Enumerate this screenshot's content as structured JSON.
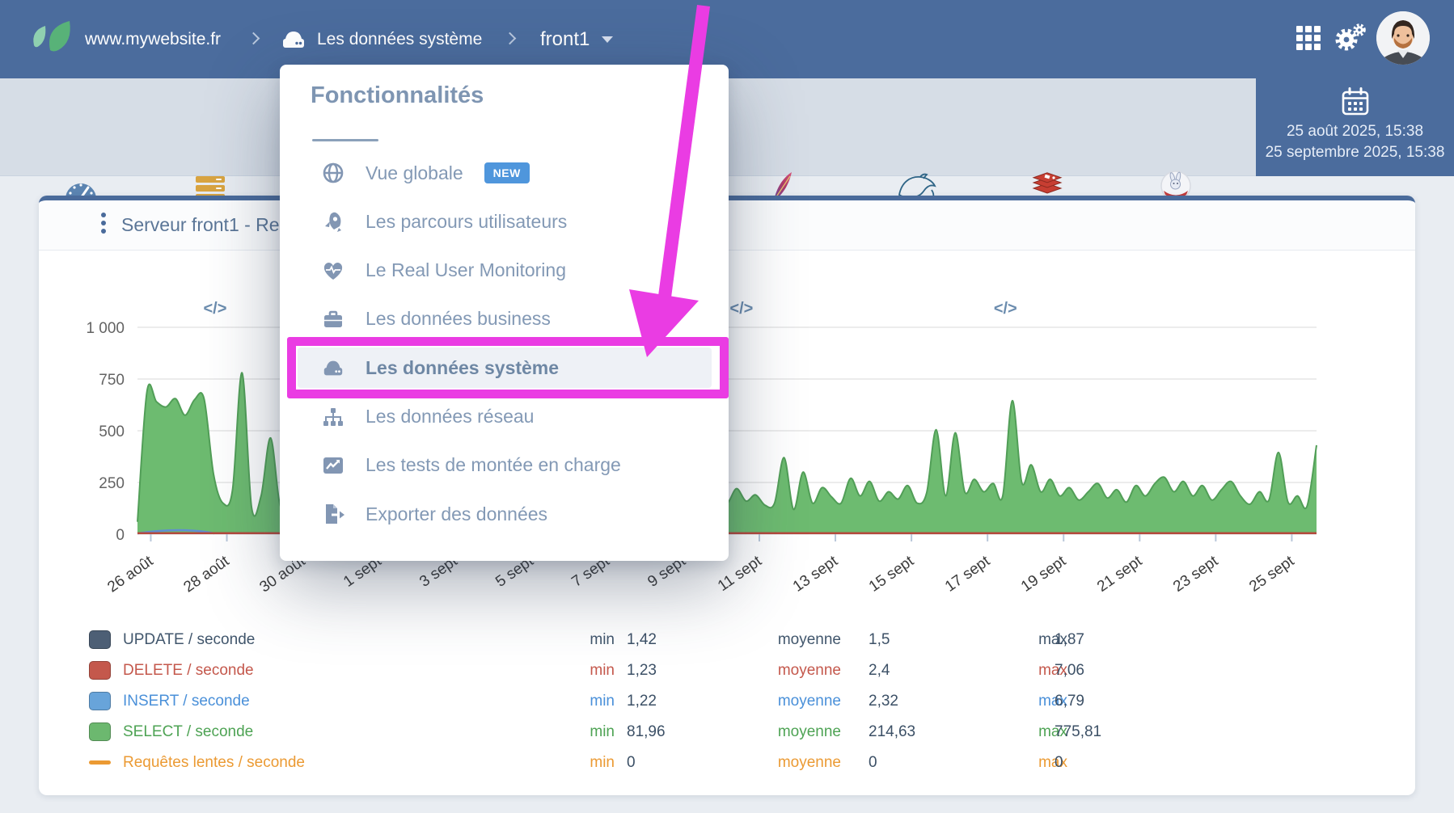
{
  "navbar": {
    "site": "www.mywebsite.fr",
    "section": "Les données système",
    "server": "front1",
    "right_icons": [
      "apps-grid-icon",
      "gears-icon",
      "user-avatar"
    ]
  },
  "toolbar": {
    "items": [
      {
        "label": "CPU",
        "icon": "gauge-icon",
        "active": false
      },
      {
        "label": "Mémoire",
        "icon": "memory-icon",
        "active": false
      },
      {
        "label": "Apache",
        "icon": "apache-icon",
        "active": false
      },
      {
        "label": "MySQL",
        "icon": "mysql-icon",
        "active": true
      },
      {
        "label": "Redis",
        "icon": "redis-icon",
        "active": false
      },
      {
        "label": "Varnish",
        "icon": "varnish-icon",
        "active": false
      }
    ],
    "daterange": {
      "from": "25 août 2025, 15:38",
      "to": "25 septembre 2025, 15:38"
    }
  },
  "menu": {
    "title": "Fonctionnalités",
    "items": [
      {
        "icon": "globe-icon",
        "label": "Vue globale",
        "badge": "NEW",
        "selected": false
      },
      {
        "icon": "rocket-icon",
        "label": "Les parcours utilisateurs",
        "selected": false
      },
      {
        "icon": "heart-pulse-icon",
        "label": "Le Real User Monitoring",
        "selected": false
      },
      {
        "icon": "briefcase-icon",
        "label": "Les données business",
        "selected": false
      },
      {
        "icon": "server-icon",
        "label": "Les données système",
        "selected": true
      },
      {
        "icon": "sitemap-icon",
        "label": "Les données réseau",
        "selected": false
      },
      {
        "icon": "chart-line-icon",
        "label": "Les tests de montée en charge",
        "selected": false
      },
      {
        "icon": "export-icon",
        "label": "Exporter des données",
        "selected": false
      }
    ]
  },
  "annotation": {
    "color": "#ea3ce3",
    "target": "Les données système"
  },
  "card": {
    "title": "Serveur front1 - Requê"
  },
  "chart_data": {
    "type": "area",
    "ylim": [
      0,
      1000
    ],
    "y_ticks": [
      "1 000",
      "750",
      "500",
      "250",
      "0"
    ],
    "y_tick_values": [
      1000,
      750,
      500,
      250,
      0
    ],
    "x_tick_labels": [
      "26 août",
      "28 août",
      "30 août",
      "1 sept",
      "3 sept",
      "5 sept",
      "7 sept",
      "9 sept",
      "11 sept",
      "13 sept",
      "15 sept",
      "17 sept",
      "19 sept",
      "21 sept",
      "23 sept",
      "25 sept"
    ],
    "x_range_days": 31,
    "first_tick_day_offset": 0.35,
    "tick_interval_days": 2,
    "grid": true,
    "code_marker_glyph": "</>",
    "code_marker_days": [
      2.04,
      15.88,
      22.82
    ],
    "series": [
      {
        "name": "SELECT / seconde",
        "color": "#6dbb70",
        "stroke": "#519e57",
        "points_per_day": 4,
        "values": [
          60,
          690,
          640,
          615,
          655,
          575,
          650,
          655,
          290,
          150,
          215,
          780,
          130,
          185,
          465,
          140,
          190,
          150,
          220,
          160,
          140,
          200,
          170,
          230,
          180,
          150,
          210,
          160,
          220,
          170,
          140,
          200,
          160,
          240,
          180,
          150,
          210,
          170,
          230,
          160,
          190,
          140,
          220,
          180,
          150,
          260,
          170,
          210,
          160,
          230,
          150,
          190,
          240,
          160,
          200,
          170,
          150,
          210,
          180,
          230,
          170,
          200,
          150,
          220,
          160,
          190,
          140,
          150,
          370,
          120,
          300,
          150,
          225,
          180,
          150,
          270,
          185,
          255,
          160,
          205,
          170,
          235,
          150,
          200,
          505,
          185,
          490,
          205,
          265,
          205,
          245,
          185,
          645,
          250,
          335,
          205,
          265,
          185,
          225,
          165,
          205,
          245,
          175,
          215,
          155,
          235,
          185,
          245,
          275,
          205,
          255,
          185,
          235,
          165,
          215,
          255,
          185,
          145,
          205,
          165,
          395,
          155,
          185,
          135,
          430
        ]
      },
      {
        "name": "UPDATE / seconde",
        "color": "#4d5f75",
        "note": "hugs zero line, ~1.4-1.9"
      },
      {
        "name": "DELETE / seconde",
        "color": "#c4584c",
        "note": "hugs zero line, ~1.2-7.1"
      },
      {
        "name": "INSERT / seconde",
        "color": "#68a4da",
        "note": "hugs zero line, ~1.2-6.8"
      },
      {
        "name": "Requêtes lentes / seconde",
        "color": "#eb9a33",
        "note": "flat at 0"
      }
    ],
    "legend": {
      "columns": [
        "min",
        "moyenne",
        "max"
      ],
      "rows": [
        {
          "label": "UPDATE / seconde",
          "marker": "square",
          "color": "#4d5f75",
          "text_color": "#41566c",
          "min": "1,42",
          "moyenne": "1,5",
          "max": "1,87"
        },
        {
          "label": "DELETE / seconde",
          "marker": "square",
          "color": "#c4584c",
          "text_color": "#c4584c",
          "min": "1,23",
          "moyenne": "2,4",
          "max": "7,06"
        },
        {
          "label": "INSERT / seconde",
          "marker": "square",
          "color": "#68a4da",
          "text_color": "#4a90d9",
          "min": "1,22",
          "moyenne": "2,32",
          "max": "6,79"
        },
        {
          "label": "SELECT / seconde",
          "marker": "square",
          "color": "#6cb86f",
          "text_color": "#4ea354",
          "min": "81,96",
          "moyenne": "214,63",
          "max": "775,81"
        },
        {
          "label": "Requêtes lentes / seconde",
          "marker": "dash",
          "color": "#eb9a33",
          "text_color": "#eb9a33",
          "min": "0",
          "moyenne": "0",
          "max": "0"
        }
      ]
    }
  }
}
